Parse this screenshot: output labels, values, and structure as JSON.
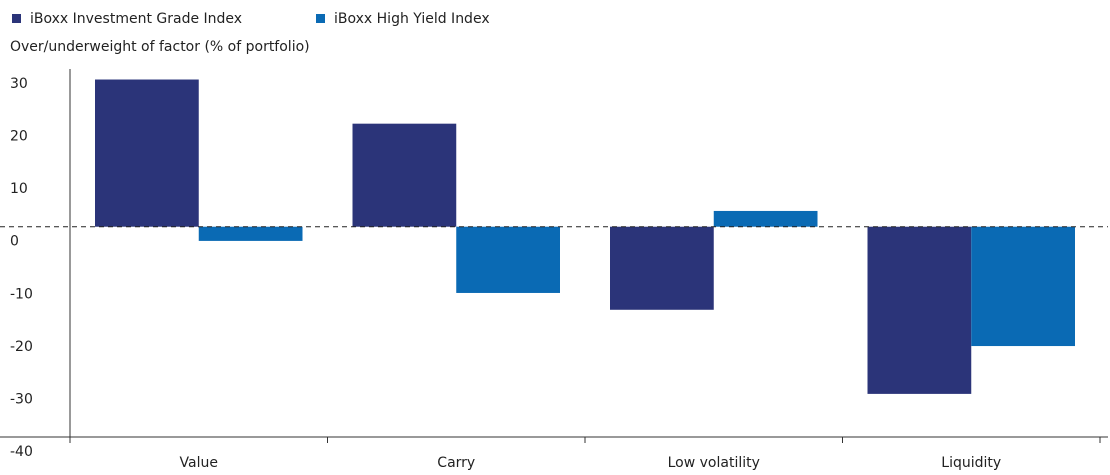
{
  "chart_data": {
    "type": "bar",
    "y_label": "Over/underweight of factor (% of portfolio)",
    "categories": [
      "Value",
      "Carry",
      "Low volatility",
      "Liquidity"
    ],
    "series": [
      {
        "name": "iBoxx Investment Grade Index",
        "color": "#2b3479",
        "values": [
          28,
          19.6,
          -15.8,
          -31.8
        ]
      },
      {
        "name": "iBoxx High Yield Index",
        "color": "#0a6ab4",
        "values": [
          -2.7,
          -12.6,
          3,
          -22.7
        ]
      }
    ],
    "ylim": [
      -40,
      30
    ],
    "yticks": [
      -40,
      -30,
      -20,
      -10,
      0,
      10,
      20,
      30
    ],
    "grid": false
  }
}
